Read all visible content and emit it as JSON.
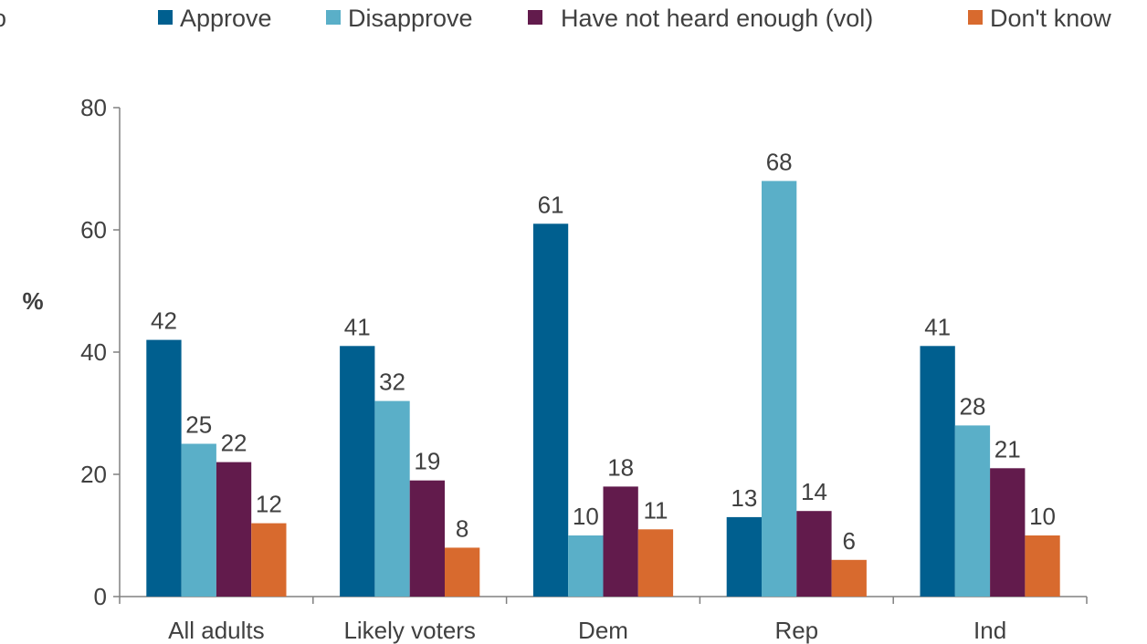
{
  "chart_data": {
    "type": "bar",
    "title": "",
    "title_fragment": "o",
    "xlabel": "",
    "ylabel": "%",
    "ylim": [
      0,
      80
    ],
    "yticks": [
      0,
      20,
      40,
      60,
      80
    ],
    "grid": false,
    "legend_position": "top",
    "categories": [
      "All adults",
      "Likely voters",
      "Dem",
      "Rep",
      "Ind"
    ],
    "series": [
      {
        "name": "Approve",
        "color": "#005F8F",
        "values": [
          42,
          41,
          61,
          13,
          41
        ]
      },
      {
        "name": "Disapprove",
        "color": "#5AAFC8",
        "values": [
          25,
          32,
          10,
          68,
          28
        ]
      },
      {
        "name": "Have not heard enough (vol)",
        "color": "#621B4C",
        "values": [
          22,
          19,
          18,
          14,
          21
        ]
      },
      {
        "name": "Don't know",
        "color": "#D86A2E",
        "values": [
          12,
          8,
          11,
          6,
          10
        ]
      }
    ]
  }
}
